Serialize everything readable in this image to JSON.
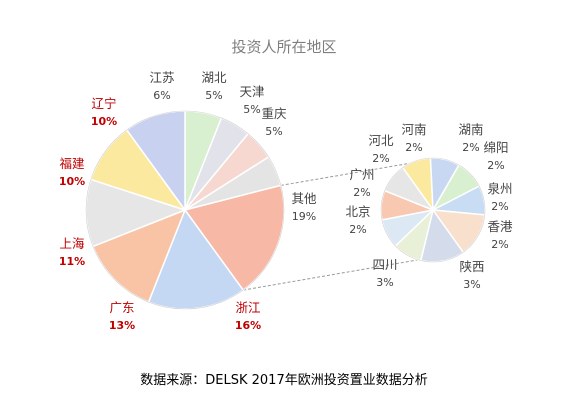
{
  "chart_data": {
    "type": "pie-of-pie",
    "title": "投资人所在地区",
    "source": "数据来源：DELSK 2017年欧洲投资置业数据分析",
    "primary": {
      "slices": [
        {
          "name": "江苏",
          "pct_label": "6%",
          "value": 6,
          "color": "#d8f0d0",
          "label_color": "#444444"
        },
        {
          "name": "湖北",
          "pct_label": "5%",
          "value": 5,
          "color": "#e2e2ea",
          "label_color": "#444444"
        },
        {
          "name": "天津",
          "pct_label": "5%",
          "value": 5,
          "color": "#f6d8d0",
          "label_color": "#444444"
        },
        {
          "name": "重庆",
          "pct_label": "5%",
          "value": 5,
          "color": "#e4e4e4",
          "label_color": "#444444"
        },
        {
          "name": "其他",
          "pct_label": "19%",
          "value": 19,
          "color": "#f8b8a6",
          "label_color": "#444444"
        },
        {
          "name": "浙江",
          "pct_label": "16%",
          "value": 16,
          "color": "#c4d8f4",
          "label_color": "#c00000"
        },
        {
          "name": "广东",
          "pct_label": "13%",
          "value": 13,
          "color": "#f9c4a6",
          "label_color": "#c00000"
        },
        {
          "name": "上海",
          "pct_label": "11%",
          "value": 11,
          "color": "#e6e6e6",
          "label_color": "#c00000"
        },
        {
          "name": "福建",
          "pct_label": "10%",
          "value": 10,
          "color": "#fbe9a0",
          "label_color": "#c00000"
        },
        {
          "name": "辽宁",
          "pct_label": "10%",
          "value": 10,
          "color": "#c8d2f0",
          "label_color": "#c00000"
        }
      ]
    },
    "secondary": {
      "slices": [
        {
          "name": "湖南",
          "pct_label": "2%",
          "value": 2,
          "color": "#fbe9a0"
        },
        {
          "name": "绵阳",
          "pct_label": "2%",
          "value": 2,
          "color": "#c8d8f2"
        },
        {
          "name": "泉州",
          "pct_label": "2%",
          "value": 2,
          "color": "#d8f0d0"
        },
        {
          "name": "香港",
          "pct_label": "2%",
          "value": 2,
          "color": "#c8dcf4"
        },
        {
          "name": "陕西",
          "pct_label": "3%",
          "value": 3,
          "color": "#f8e0cc"
        },
        {
          "name": "四川",
          "pct_label": "3%",
          "value": 3,
          "color": "#d4dcec"
        },
        {
          "name": "北京",
          "pct_label": "2%",
          "value": 2,
          "color": "#e8f0d8"
        },
        {
          "name": "广州",
          "pct_label": "2%",
          "value": 2,
          "color": "#dce8f4"
        },
        {
          "name": "河北",
          "pct_label": "2%",
          "value": 2,
          "color": "#f8c8b0"
        },
        {
          "name": "河南",
          "pct_label": "2%",
          "value": 2,
          "color": "#e6e6e6"
        }
      ]
    }
  }
}
